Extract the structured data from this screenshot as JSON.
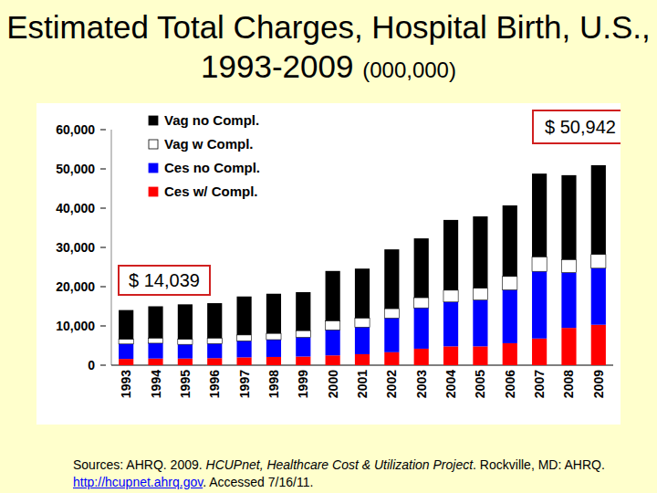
{
  "chart_data": {
    "type": "bar",
    "stacked": true,
    "title": "Estimated Total Charges, Hospital Birth, U.S., 1993-2009",
    "subtitle": "(000,000)",
    "categories": [
      "1993",
      "1994",
      "1995",
      "1996",
      "1997",
      "1998",
      "1999",
      "2000",
      "2001",
      "2002",
      "2003",
      "2004",
      "2005",
      "2006",
      "2007",
      "2008",
      "2009"
    ],
    "series": [
      {
        "name": "Ces w/ Compl.",
        "color": "#ff0000",
        "values": [
          1600,
          1700,
          1700,
          1800,
          2000,
          2100,
          2200,
          2500,
          2800,
          3300,
          4200,
          4800,
          4800,
          5600,
          6800,
          9500,
          10300
        ]
      },
      {
        "name": "Ces no Compl.",
        "color": "#0000ff",
        "values": [
          3800,
          3900,
          3600,
          3700,
          4200,
          4400,
          4900,
          6500,
          6900,
          8700,
          10400,
          11300,
          11800,
          13600,
          17100,
          14100,
          14400
        ]
      },
      {
        "name": "Vag w Compl.",
        "color": "#ffffff",
        "values": [
          1200,
          1300,
          1300,
          1400,
          1500,
          1600,
          1700,
          2300,
          2300,
          2400,
          2600,
          3000,
          3000,
          3400,
          3700,
          3300,
          3500
        ]
      },
      {
        "name": "Vag no Compl.",
        "color": "#000000",
        "values": [
          7439,
          8100,
          8900,
          8900,
          9800,
          10100,
          9800,
          12700,
          12600,
          15100,
          15100,
          17900,
          18300,
          18100,
          21200,
          21500,
          22742
        ]
      }
    ],
    "ylim": [
      0,
      60000
    ],
    "yticks": [
      0,
      {
        "value": 10000,
        "label": "10,000"
      },
      {
        "value": 20000,
        "label": "20,000"
      },
      {
        "value": 30000,
        "label": "30,000"
      },
      {
        "value": 40000,
        "label": "40,000"
      },
      {
        "value": 50000,
        "label": "50,000"
      },
      {
        "value": 60000,
        "label": "60,000"
      }
    ],
    "grid": false,
    "legend": "top-left",
    "annotations": [
      {
        "text": "$ 14,039"
      },
      {
        "text": "$ 50,942"
      }
    ],
    "source": [
      "Sources: AHRQ. 2009. ",
      "HCUPnet, Healthcare Cost & Utilization Project",
      ". Rockville, MD: AHRQ. ",
      "http://hcupnet.ahrq.gov",
      ".  Accessed 7/16/11."
    ]
  }
}
